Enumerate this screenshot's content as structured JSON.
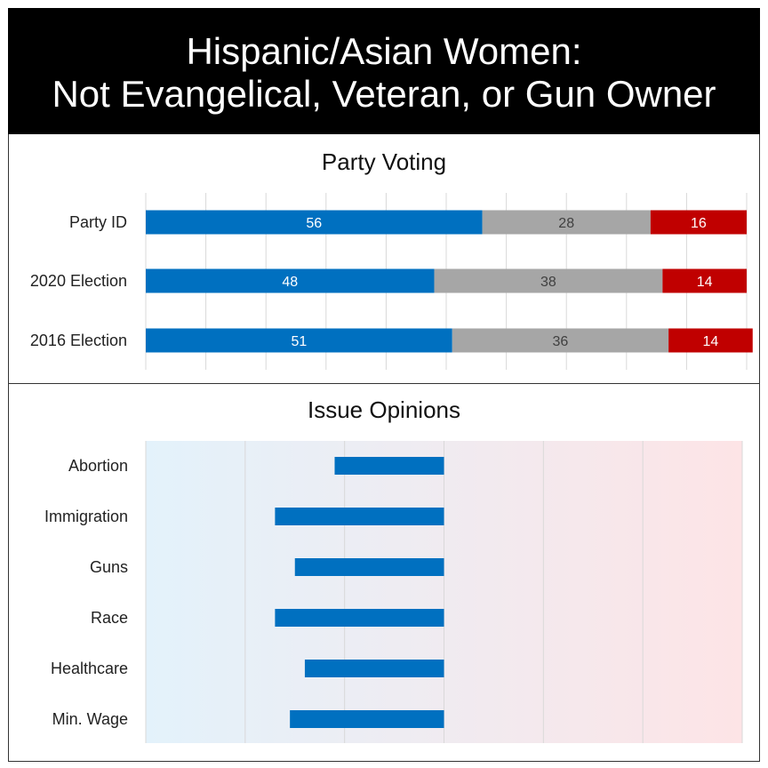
{
  "title": {
    "line1": "Hispanic/Asian Women:",
    "line2": "Not Evangelical, Veteran, or Gun Owner"
  },
  "colors": {
    "democrat": "#0070c0",
    "neutral": "#a6a6a6",
    "republican": "#c00000",
    "title_bg": "#000000",
    "bg_left": "#e3f2fb",
    "bg_right": "#fde4e6"
  },
  "chart_data": [
    {
      "type": "bar",
      "orientation": "horizontal",
      "stacked": true,
      "title": "Party Voting",
      "categories": [
        "Party ID",
        "2020 Election",
        "2016 Election"
      ],
      "series": [
        {
          "color": "#0070c0",
          "values": [
            56,
            48,
            51
          ]
        },
        {
          "color": "#a6a6a6",
          "values": [
            28,
            38,
            36
          ]
        },
        {
          "color": "#c00000",
          "values": [
            16,
            14,
            14
          ]
        }
      ],
      "xlim": [
        0,
        100
      ],
      "grid": true,
      "data_labels": true
    },
    {
      "type": "bar",
      "orientation": "horizontal",
      "title": "Issue Opinions",
      "categories": [
        "Abortion",
        "Immigration",
        "Guns",
        "Race",
        "Healthcare",
        "Min. Wage"
      ],
      "values": [
        -1.1,
        -1.7,
        -1.5,
        -1.7,
        -1.4,
        -1.55
      ],
      "xlim": [
        -3,
        3
      ],
      "grid": true,
      "background": "gradient blue-to-red"
    }
  ]
}
